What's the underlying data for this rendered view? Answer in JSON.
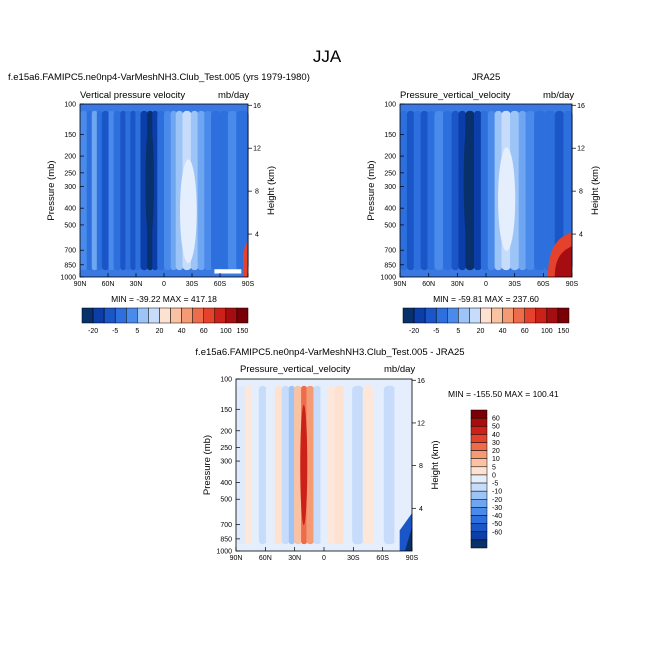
{
  "title": "JJA",
  "colors": {
    "blues": [
      "#08306b",
      "#0b3ea8",
      "#1b56c8",
      "#2d6fdc",
      "#4a8aea",
      "#6fa6f2",
      "#9cc4f7",
      "#c6dcfa",
      "#e4eefc"
    ],
    "reds": [
      "#fde2d2",
      "#f9c2a3",
      "#f49a74",
      "#ee6b4b",
      "#e5422e",
      "#cc2118",
      "#a60d10",
      "#7a0007"
    ],
    "neutral": "#f4f8ff"
  },
  "chart_data": [
    {
      "type": "heatmap",
      "header_left": "f.e15a6.FAMIPC5.ne0np4-VarMeshNH3.Club_Test.005 (yrs 1979-1980)",
      "variable": "Vertical pressure velocity",
      "units": "mb/day",
      "ylabel": "Pressure (mb)",
      "ylabel_right": "Height (km)",
      "x_ticks": [
        "90N",
        "60N",
        "30N",
        "0",
        "30S",
        "60S",
        "90S"
      ],
      "y_ticks": [
        "100",
        "150",
        "200",
        "250",
        "300",
        "400",
        "500",
        "700",
        "850",
        "1000"
      ],
      "height_ticks": [
        "16",
        "12",
        "8",
        "4"
      ],
      "stats": "MIN = -39.22  MAX = 417.18",
      "colorbar_labels": [
        "-20",
        "-5",
        "5",
        "20",
        "40",
        "60",
        "100",
        "150"
      ]
    },
    {
      "type": "heatmap",
      "header_center": "JRA25",
      "variable": "Pressure_vertical_velocity",
      "units": "mb/day",
      "ylabel": "Pressure (mb)",
      "ylabel_right": "Height (km)",
      "x_ticks": [
        "90N",
        "60N",
        "30N",
        "0",
        "30S",
        "60S",
        "90S"
      ],
      "y_ticks": [
        "100",
        "150",
        "200",
        "250",
        "300",
        "400",
        "500",
        "700",
        "850",
        "1000"
      ],
      "height_ticks": [
        "16",
        "12",
        "8",
        "4"
      ],
      "stats": "MIN = -59.81  MAX = 237.60",
      "colorbar_labels": [
        "-20",
        "-5",
        "5",
        "20",
        "40",
        "60",
        "100",
        "150"
      ]
    },
    {
      "type": "heatmap",
      "header_center": "f.e15a6.FAMIPC5.ne0np4-VarMeshNH3.Club_Test.005 - JRA25",
      "variable": "Pressure_vertical_velocity",
      "units": "mb/day",
      "ylabel": "Pressure (mb)",
      "ylabel_right": "Height (km)",
      "x_ticks": [
        "90N",
        "60N",
        "30N",
        "0",
        "30S",
        "60S",
        "90S"
      ],
      "y_ticks": [
        "100",
        "150",
        "200",
        "250",
        "300",
        "400",
        "500",
        "700",
        "850",
        "1000"
      ],
      "height_ticks": [
        "16",
        "12",
        "8",
        "4"
      ],
      "stats": "MIN = -155.50  MAX = 100.41",
      "colorbar_labels": [
        "60",
        "50",
        "40",
        "30",
        "20",
        "10",
        "5",
        "0",
        "-5",
        "-10",
        "-20",
        "-30",
        "-40",
        "-50",
        "-60"
      ]
    }
  ]
}
